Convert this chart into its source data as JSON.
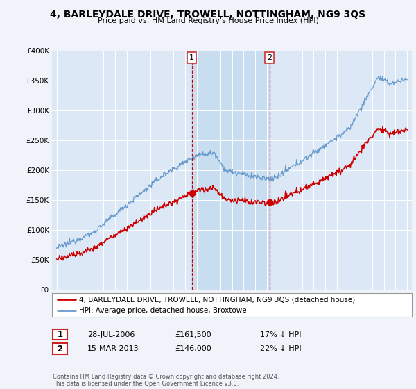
{
  "title": "4, BARLEYDALE DRIVE, TROWELL, NOTTINGHAM, NG9 3QS",
  "subtitle": "Price paid vs. HM Land Registry's House Price Index (HPI)",
  "legend_red": "4, BARLEYDALE DRIVE, TROWELL, NOTTINGHAM, NG9 3QS (detached house)",
  "legend_blue": "HPI: Average price, detached house, Broxtowe",
  "annotation1_label": "1",
  "annotation1_date": "28-JUL-2006",
  "annotation1_price": "£161,500",
  "annotation1_hpi": "17% ↓ HPI",
  "annotation2_label": "2",
  "annotation2_date": "15-MAR-2013",
  "annotation2_price": "£146,000",
  "annotation2_hpi": "22% ↓ HPI",
  "footnote": "Contains HM Land Registry data © Crown copyright and database right 2024.\nThis data is licensed under the Open Government Licence v3.0.",
  "ylim": [
    0,
    400000
  ],
  "yticks": [
    0,
    50000,
    100000,
    150000,
    200000,
    250000,
    300000,
    350000,
    400000
  ],
  "background_color": "#f0f4fa",
  "plot_bg": "#dce8f5",
  "shade_color": "#c8ddf0",
  "red_color": "#cc0000",
  "blue_color": "#6699cc",
  "marker1_x": 2006.57,
  "marker1_y": 161500,
  "marker2_x": 2013.21,
  "marker2_y": 146000,
  "sale1_x": 2006.57,
  "sale2_x": 2013.21,
  "xlim_left": 1994.6,
  "xlim_right": 2025.4
}
